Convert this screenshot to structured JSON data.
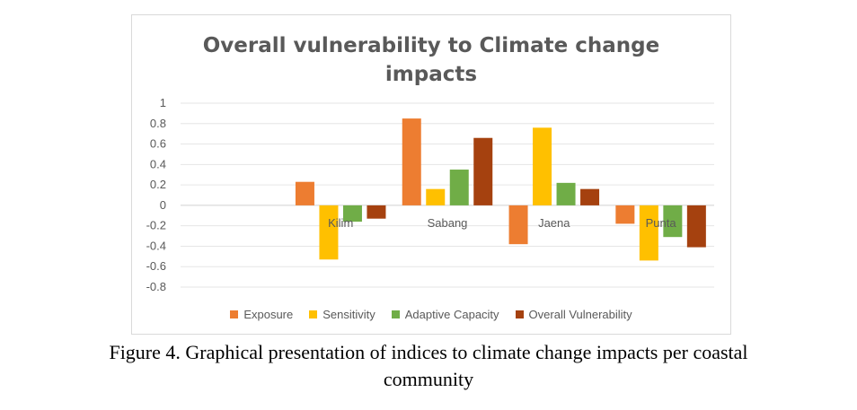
{
  "chart_data": {
    "type": "bar",
    "title_lines": [
      "Overall vulnerability to Climate change",
      "impacts"
    ],
    "categories": [
      "",
      "Kilim",
      "Sabang",
      "Jaena",
      "Punta"
    ],
    "series": [
      {
        "name": "Exposure",
        "color": "#ED7D31",
        "values": [
          null,
          0.23,
          0.85,
          -0.38,
          -0.18
        ]
      },
      {
        "name": "Sensitivity",
        "color": "#FFC000",
        "values": [
          null,
          -0.53,
          0.16,
          0.76,
          -0.54
        ]
      },
      {
        "name": "Adaptive Capacity",
        "color": "#70AD47",
        "values": [
          null,
          -0.16,
          0.35,
          0.22,
          -0.31
        ]
      },
      {
        "name": "Overall Vulnerability",
        "color": "#A5410F",
        "values": [
          null,
          -0.13,
          0.66,
          0.16,
          -0.41
        ]
      }
    ],
    "ylim": [
      -0.8,
      1
    ],
    "yticks": [
      "1",
      "0.8",
      "0.6",
      "0.4",
      "0.2",
      "0",
      "-0.2",
      "-0.4",
      "-0.6",
      "-0.8"
    ],
    "ytick_values": [
      1,
      0.8,
      0.6,
      0.4,
      0.2,
      0,
      -0.2,
      -0.4,
      -0.6,
      -0.8
    ],
    "grid": true,
    "legend_position": "bottom"
  },
  "caption_lines": [
    "Figure 4. Graphical presentation of indices to climate change impacts per coastal",
    "community"
  ]
}
